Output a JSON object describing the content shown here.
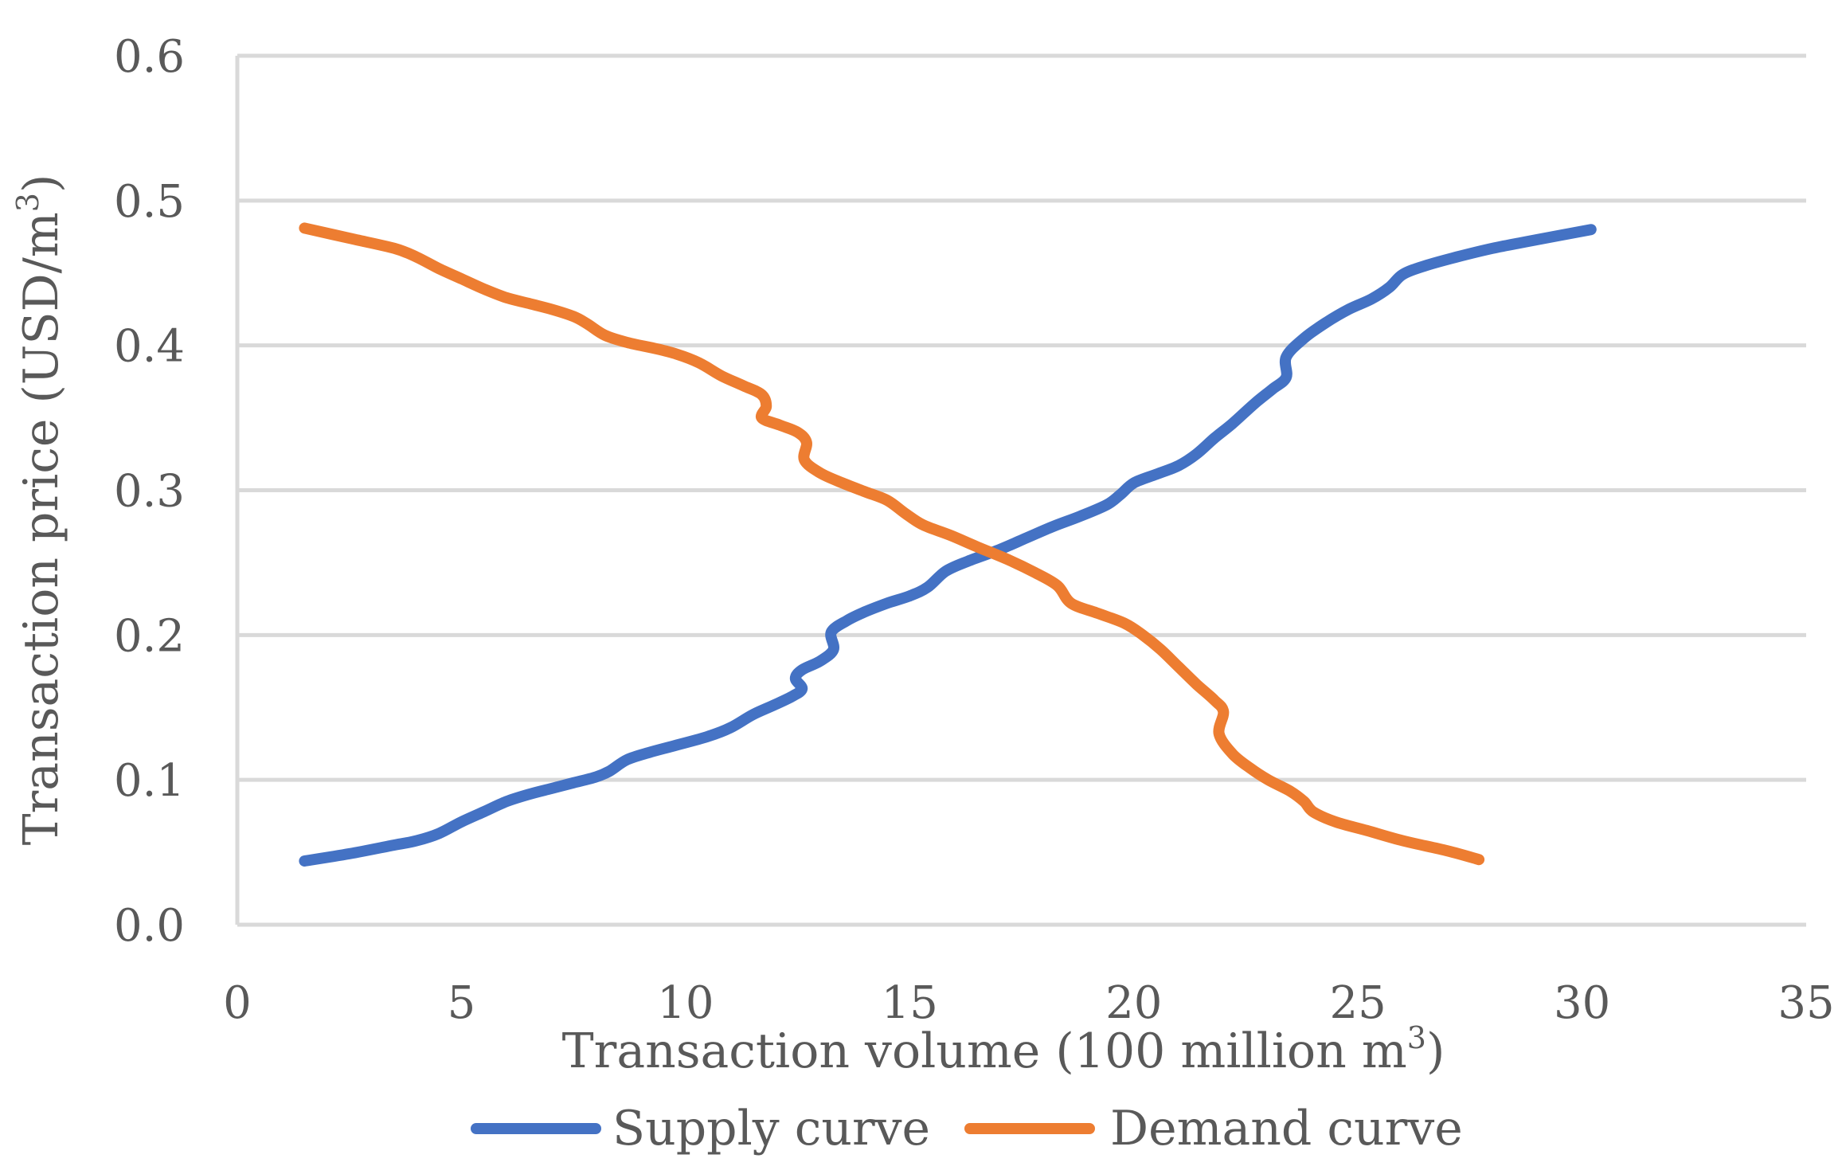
{
  "chart_data": {
    "type": "line",
    "title": "",
    "xlabel": "Transaction volume (100 million m",
    "xlabel_sup": "3",
    "xlabel_end": ")",
    "ylabel": "Transaction price (USD/m",
    "ylabel_sup": "3",
    "ylabel_end": ")",
    "xlim": [
      0,
      35
    ],
    "ylim": [
      0,
      0.6
    ],
    "xticks": [
      0,
      5,
      10,
      15,
      20,
      25,
      30,
      35
    ],
    "yticks": [
      "0.0",
      "0.1",
      "0.2",
      "0.3",
      "0.4",
      "0.5",
      "0.6"
    ],
    "grid": true,
    "legend_position": "bottom",
    "series": [
      {
        "name": "Supply curve",
        "color": "#4472C4",
        "points": [
          [
            1.5,
            0.044
          ],
          [
            2.5,
            0.049
          ],
          [
            3.5,
            0.055
          ],
          [
            4.0,
            0.058
          ],
          [
            4.5,
            0.063
          ],
          [
            5.0,
            0.071
          ],
          [
            5.5,
            0.078
          ],
          [
            6.0,
            0.085
          ],
          [
            6.5,
            0.09
          ],
          [
            7.0,
            0.094
          ],
          [
            7.5,
            0.098
          ],
          [
            8.0,
            0.102
          ],
          [
            8.3,
            0.106
          ],
          [
            8.7,
            0.114
          ],
          [
            9.2,
            0.119
          ],
          [
            9.8,
            0.124
          ],
          [
            10.5,
            0.13
          ],
          [
            11.0,
            0.136
          ],
          [
            11.5,
            0.145
          ],
          [
            12.0,
            0.152
          ],
          [
            12.4,
            0.158
          ],
          [
            12.6,
            0.163
          ],
          [
            12.45,
            0.17
          ],
          [
            12.6,
            0.176
          ],
          [
            13.0,
            0.182
          ],
          [
            13.3,
            0.19
          ],
          [
            13.25,
            0.202
          ],
          [
            13.6,
            0.21
          ],
          [
            14.0,
            0.216
          ],
          [
            14.5,
            0.222
          ],
          [
            15.0,
            0.227
          ],
          [
            15.4,
            0.233
          ],
          [
            15.8,
            0.244
          ],
          [
            16.3,
            0.251
          ],
          [
            17.0,
            0.259
          ],
          [
            17.6,
            0.267
          ],
          [
            18.2,
            0.275
          ],
          [
            18.8,
            0.282
          ],
          [
            19.4,
            0.29
          ],
          [
            19.7,
            0.297
          ],
          [
            20.0,
            0.305
          ],
          [
            20.5,
            0.311
          ],
          [
            21.0,
            0.317
          ],
          [
            21.4,
            0.325
          ],
          [
            21.8,
            0.336
          ],
          [
            22.2,
            0.346
          ],
          [
            22.7,
            0.36
          ],
          [
            23.1,
            0.37
          ],
          [
            23.4,
            0.378
          ],
          [
            23.4,
            0.392
          ],
          [
            23.8,
            0.405
          ],
          [
            24.3,
            0.416
          ],
          [
            24.8,
            0.425
          ],
          [
            25.3,
            0.432
          ],
          [
            25.7,
            0.44
          ],
          [
            26.0,
            0.449
          ],
          [
            26.5,
            0.455
          ],
          [
            27.2,
            0.461
          ],
          [
            28.0,
            0.467
          ],
          [
            29.0,
            0.473
          ],
          [
            30.2,
            0.48
          ]
        ]
      },
      {
        "name": "Demand curve",
        "color": "#ED7D31",
        "points": [
          [
            1.5,
            0.481
          ],
          [
            2.5,
            0.474
          ],
          [
            3.5,
            0.467
          ],
          [
            4.0,
            0.461
          ],
          [
            4.5,
            0.453
          ],
          [
            5.0,
            0.446
          ],
          [
            5.5,
            0.439
          ],
          [
            6.0,
            0.433
          ],
          [
            6.5,
            0.429
          ],
          [
            7.0,
            0.425
          ],
          [
            7.5,
            0.42
          ],
          [
            7.8,
            0.415
          ],
          [
            8.2,
            0.407
          ],
          [
            8.7,
            0.402
          ],
          [
            9.3,
            0.398
          ],
          [
            9.8,
            0.394
          ],
          [
            10.3,
            0.388
          ],
          [
            10.8,
            0.379
          ],
          [
            11.3,
            0.372
          ],
          [
            11.7,
            0.366
          ],
          [
            11.8,
            0.358
          ],
          [
            11.7,
            0.35
          ],
          [
            12.1,
            0.345
          ],
          [
            12.5,
            0.34
          ],
          [
            12.7,
            0.333
          ],
          [
            12.65,
            0.321
          ],
          [
            13.0,
            0.312
          ],
          [
            13.5,
            0.305
          ],
          [
            14.0,
            0.299
          ],
          [
            14.5,
            0.293
          ],
          [
            14.9,
            0.284
          ],
          [
            15.3,
            0.276
          ],
          [
            15.9,
            0.269
          ],
          [
            16.5,
            0.261
          ],
          [
            17.2,
            0.252
          ],
          [
            17.8,
            0.243
          ],
          [
            18.3,
            0.234
          ],
          [
            18.6,
            0.222
          ],
          [
            19.2,
            0.215
          ],
          [
            19.8,
            0.208
          ],
          [
            20.2,
            0.2
          ],
          [
            20.6,
            0.19
          ],
          [
            21.0,
            0.178
          ],
          [
            21.4,
            0.166
          ],
          [
            21.8,
            0.155
          ],
          [
            22.0,
            0.147
          ],
          [
            21.9,
            0.132
          ],
          [
            22.2,
            0.118
          ],
          [
            22.6,
            0.108
          ],
          [
            23.0,
            0.1
          ],
          [
            23.5,
            0.092
          ],
          [
            23.8,
            0.085
          ],
          [
            24.0,
            0.078
          ],
          [
            24.5,
            0.071
          ],
          [
            25.2,
            0.065
          ],
          [
            26.0,
            0.058
          ],
          [
            27.0,
            0.051
          ],
          [
            27.7,
            0.045
          ]
        ]
      }
    ]
  }
}
